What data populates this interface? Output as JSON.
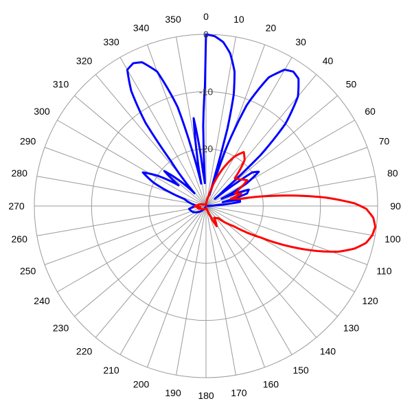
{
  "chart_data": {
    "type": "polar",
    "title": "",
    "angle_unit": "degrees",
    "angle_zero": "top",
    "angle_direction": "clockwise",
    "angle_ticks": [
      0,
      10,
      20,
      30,
      40,
      50,
      60,
      70,
      80,
      90,
      100,
      110,
      120,
      130,
      140,
      150,
      160,
      170,
      180,
      190,
      200,
      210,
      220,
      230,
      240,
      250,
      260,
      270,
      280,
      290,
      300,
      310,
      320,
      330,
      340,
      350
    ],
    "angle_tick_labels": [
      "0",
      "10",
      "20",
      "30",
      "40",
      "50",
      "60",
      "70",
      "80",
      "90",
      "100",
      "110",
      "120",
      "130",
      "140",
      "150",
      "160",
      "170",
      "180",
      "190",
      "200",
      "210",
      "220",
      "230",
      "240",
      "250",
      "260",
      "270",
      "280",
      "290",
      "300",
      "310",
      "320",
      "330",
      "340",
      "350"
    ],
    "radial_range": [
      -30,
      0
    ],
    "radial_ticks": [
      0,
      -10,
      -20
    ],
    "radial_tick_labels": [
      "0",
      "-10",
      "-20"
    ],
    "grid": true,
    "legend": "none",
    "colors": {
      "series_a": "#0000ff",
      "series_b": "#ff0000",
      "grid": "#999999"
    },
    "series": [
      {
        "color": "#0000ff",
        "points": [
          [
            0,
            0
          ],
          [
            3,
            -0.3
          ],
          [
            6,
            -1.2
          ],
          [
            9,
            -3.0
          ],
          [
            12,
            -6.0
          ],
          [
            14,
            -10.0
          ],
          [
            15.5,
            -16.0
          ],
          [
            16.5,
            -25.0
          ],
          [
            17.5,
            -28.0
          ],
          [
            19,
            -20.0
          ],
          [
            22,
            -11.0
          ],
          [
            26,
            -5.0
          ],
          [
            30,
            -2.5
          ],
          [
            33,
            -2.0
          ],
          [
            36,
            -2.5
          ],
          [
            40,
            -5.0
          ],
          [
            44,
            -10.0
          ],
          [
            47,
            -17.0
          ],
          [
            49,
            -26.0
          ],
          [
            51,
            -28.0
          ],
          [
            54,
            -20.0
          ],
          [
            57,
            -19.0
          ],
          [
            61,
            -22.0
          ],
          [
            65,
            -27.0
          ],
          [
            69,
            -22.0
          ],
          [
            73,
            -22.5
          ],
          [
            77,
            -27.0
          ],
          [
            80,
            -24.0
          ],
          [
            83,
            -24.0
          ],
          [
            86,
            -28.0
          ],
          [
            88,
            -30.0
          ],
          [
            92,
            -30.0
          ],
          [
            200,
            -30.0
          ],
          [
            220,
            -29.0
          ],
          [
            245,
            -27.5
          ],
          [
            260,
            -27.0
          ],
          [
            268,
            -28.0
          ],
          [
            275,
            -28.0
          ],
          [
            282,
            -27.0
          ],
          [
            288,
            -26.0
          ],
          [
            294,
            -20.0
          ],
          [
            298,
            -17.5
          ],
          [
            302,
            -20.0
          ],
          [
            307,
            -24.0
          ],
          [
            310,
            -20.5
          ],
          [
            313,
            -23.0
          ],
          [
            318,
            -27.0
          ],
          [
            322,
            -20.0
          ],
          [
            324,
            -12.0
          ],
          [
            327,
            -6.0
          ],
          [
            330,
            -2.5
          ],
          [
            333,
            -2.0
          ],
          [
            336,
            -2.5
          ],
          [
            340,
            -5.0
          ],
          [
            344,
            -12.0
          ],
          [
            346,
            -20.0
          ],
          [
            348,
            -26.0
          ],
          [
            350,
            -21.0
          ],
          [
            352,
            -14.5
          ],
          [
            355,
            -24.0
          ],
          [
            357,
            -26.0
          ],
          [
            358,
            -16.0
          ],
          [
            359.5,
            -9.0
          ]
        ]
      },
      {
        "color": "#ff0000",
        "points": [
          [
            3,
            -30.0
          ],
          [
            15,
            -28.0
          ],
          [
            24,
            -23.0
          ],
          [
            30,
            -20.0
          ],
          [
            35,
            -18.5
          ],
          [
            40,
            -19.5
          ],
          [
            46,
            -23.0
          ],
          [
            52,
            -22.5
          ],
          [
            58,
            -21.5
          ],
          [
            63,
            -23.5
          ],
          [
            67,
            -24.5
          ],
          [
            71,
            -23.5
          ],
          [
            74,
            -25.5
          ],
          [
            78,
            -24.0
          ],
          [
            82,
            -17.0
          ],
          [
            86,
            -9.0
          ],
          [
            89,
            -4.0
          ],
          [
            91,
            -2.0
          ],
          [
            94,
            -0.7
          ],
          [
            97,
            -0.2
          ],
          [
            100,
            -0.5
          ],
          [
            103,
            -1.3
          ],
          [
            106,
            -3.0
          ],
          [
            109,
            -5.5
          ],
          [
            112,
            -9.0
          ],
          [
            116,
            -14.0
          ],
          [
            120,
            -19.0
          ],
          [
            126,
            -24.0
          ],
          [
            135,
            -27.0
          ],
          [
            145,
            -27.5
          ],
          [
            152,
            -26.0
          ],
          [
            157,
            -28.0
          ],
          [
            165,
            -29.5
          ],
          [
            200,
            -29.5
          ],
          [
            240,
            -29.0
          ],
          [
            255,
            -28.5
          ],
          [
            262,
            -29.0
          ],
          [
            268,
            -28.0
          ],
          [
            275,
            -28.5
          ],
          [
            300,
            -29.5
          ],
          [
            340,
            -29.8
          ]
        ]
      }
    ]
  }
}
